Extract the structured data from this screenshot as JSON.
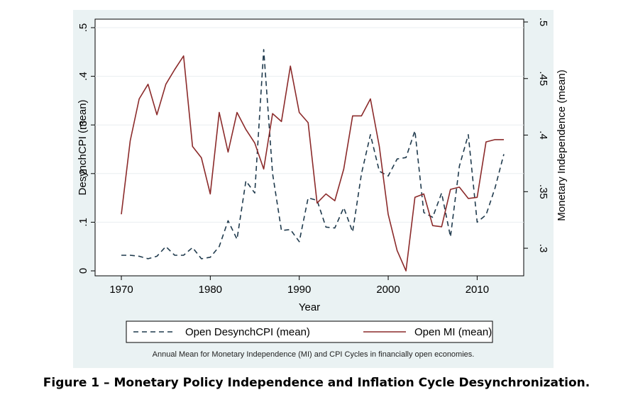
{
  "chart_data": {
    "type": "line",
    "title": "",
    "xlabel": "Year",
    "ylabel_left": "DesynchCPI (mean)",
    "ylabel_right": "Monetary Independence (mean)",
    "xlim": [
      1970,
      2013
    ],
    "ylim_left": [
      0,
      0.5
    ],
    "ylim_right": [
      0.28,
      0.5
    ],
    "x_ticks": [
      1970,
      1980,
      1990,
      2000,
      2010
    ],
    "y_ticks_left": [
      0,
      0.1,
      0.2,
      0.3,
      0.4,
      0.5
    ],
    "y_tick_labels_left": [
      "0",
      ".1",
      ".2",
      ".3",
      ".4",
      ".5"
    ],
    "y_ticks_right": [
      0.3,
      0.35,
      0.4,
      0.45,
      0.5
    ],
    "y_tick_labels_right": [
      ".3",
      ".35",
      ".4",
      ".45",
      ".5"
    ],
    "legend_position": "bottom",
    "x": [
      1970,
      1971,
      1972,
      1973,
      1974,
      1975,
      1976,
      1977,
      1978,
      1979,
      1980,
      1981,
      1982,
      1983,
      1984,
      1985,
      1986,
      1987,
      1988,
      1989,
      1990,
      1991,
      1992,
      1993,
      1994,
      1995,
      1996,
      1997,
      1998,
      1999,
      2000,
      2001,
      2002,
      2003,
      2004,
      2005,
      2006,
      2007,
      2008,
      2009,
      2010,
      2011,
      2012,
      2013
    ],
    "series": [
      {
        "name": "Open DesynchCPI (mean)",
        "axis": "left",
        "color": "#1f3a4d",
        "dash": "dashed",
        "values": [
          0.032,
          0.032,
          0.03,
          0.025,
          0.03,
          0.05,
          0.032,
          0.032,
          0.048,
          0.025,
          0.028,
          0.05,
          0.103,
          0.065,
          0.185,
          0.16,
          0.455,
          0.2,
          0.083,
          0.085,
          0.06,
          0.15,
          0.145,
          0.09,
          0.088,
          0.13,
          0.08,
          0.2,
          0.28,
          0.205,
          0.195,
          0.23,
          0.233,
          0.288,
          0.12,
          0.11,
          0.16,
          0.07,
          0.215,
          0.28,
          0.1,
          0.115,
          0.17,
          0.24
        ]
      },
      {
        "name": "Open MI (mean)",
        "axis": "right",
        "color": "#8b2a2a",
        "dash": "solid",
        "values": [
          0.33,
          0.395,
          0.432,
          0.445,
          0.418,
          0.445,
          0.458,
          0.47,
          0.39,
          0.38,
          0.348,
          0.42,
          0.385,
          0.42,
          0.405,
          0.393,
          0.37,
          0.419,
          0.412,
          0.461,
          0.42,
          0.411,
          0.34,
          0.348,
          0.342,
          0.37,
          0.417,
          0.417,
          0.432,
          0.39,
          0.33,
          0.298,
          0.28,
          0.345,
          0.348,
          0.32,
          0.319,
          0.352,
          0.354,
          0.344,
          0.345,
          0.394,
          0.396,
          0.396
        ]
      }
    ]
  },
  "note": "Annual Mean for Monetary Independence (MI) and CPI Cycles in financially open economies.",
  "caption": "Figure 1 – Monetary Policy Independence and Inflation Cycle Desynchronization."
}
